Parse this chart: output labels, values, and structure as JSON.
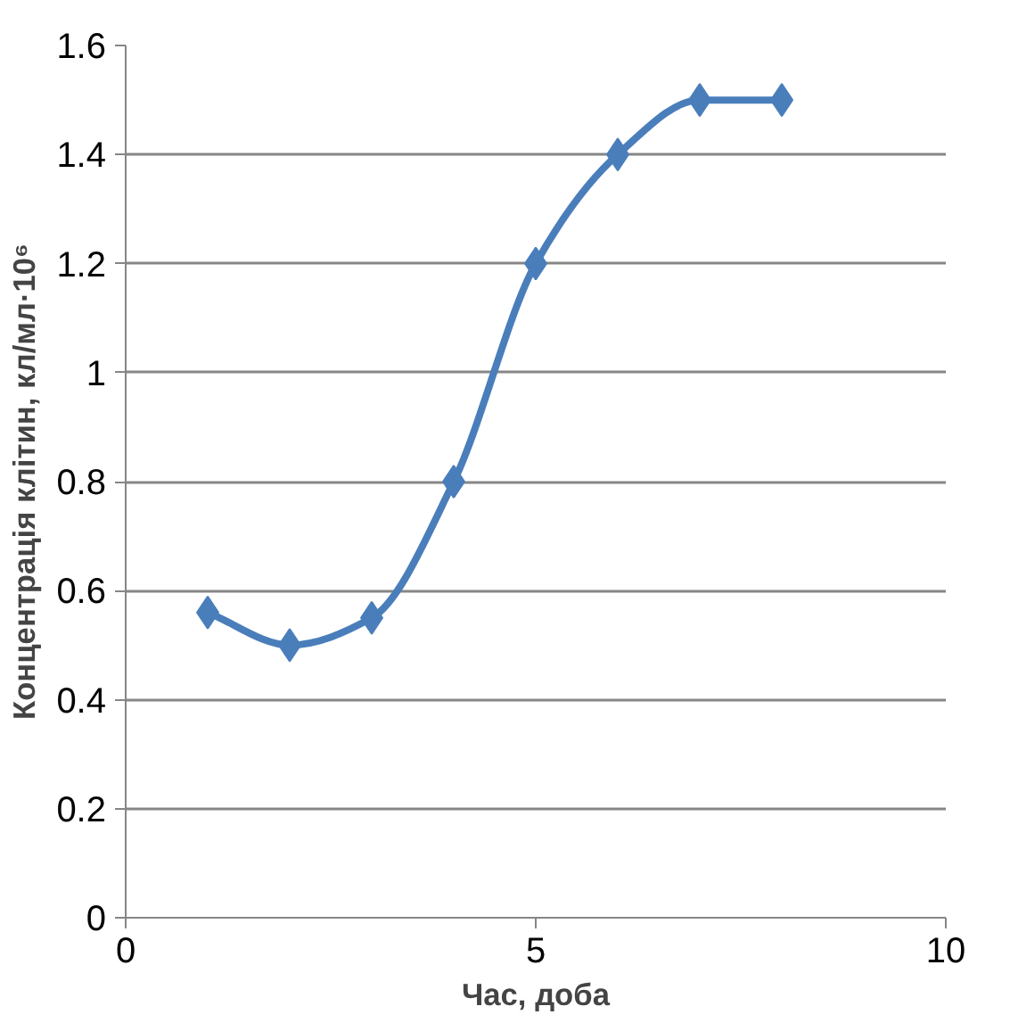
{
  "chart_data": {
    "type": "line",
    "xlabel": "Час, доба",
    "ylabel": "Концентрація клітин, кл/мл·10⁶",
    "x": [
      1,
      2,
      3,
      4,
      5,
      6,
      7,
      8
    ],
    "series": [
      {
        "color": "#4a7ebb",
        "values": [
          0.56,
          0.5,
          0.55,
          0.8,
          1.2,
          1.4,
          1.5,
          1.5
        ]
      }
    ],
    "xlim": [
      0,
      10
    ],
    "xticks": [
      0,
      5,
      10
    ],
    "ylim": [
      0,
      1.6
    ],
    "yticks": [
      0,
      0.2,
      0.4,
      0.6,
      0.8,
      1,
      1.2,
      1.4,
      1.6
    ],
    "grid": "y",
    "marker": "diamond",
    "line_style": "solid"
  }
}
